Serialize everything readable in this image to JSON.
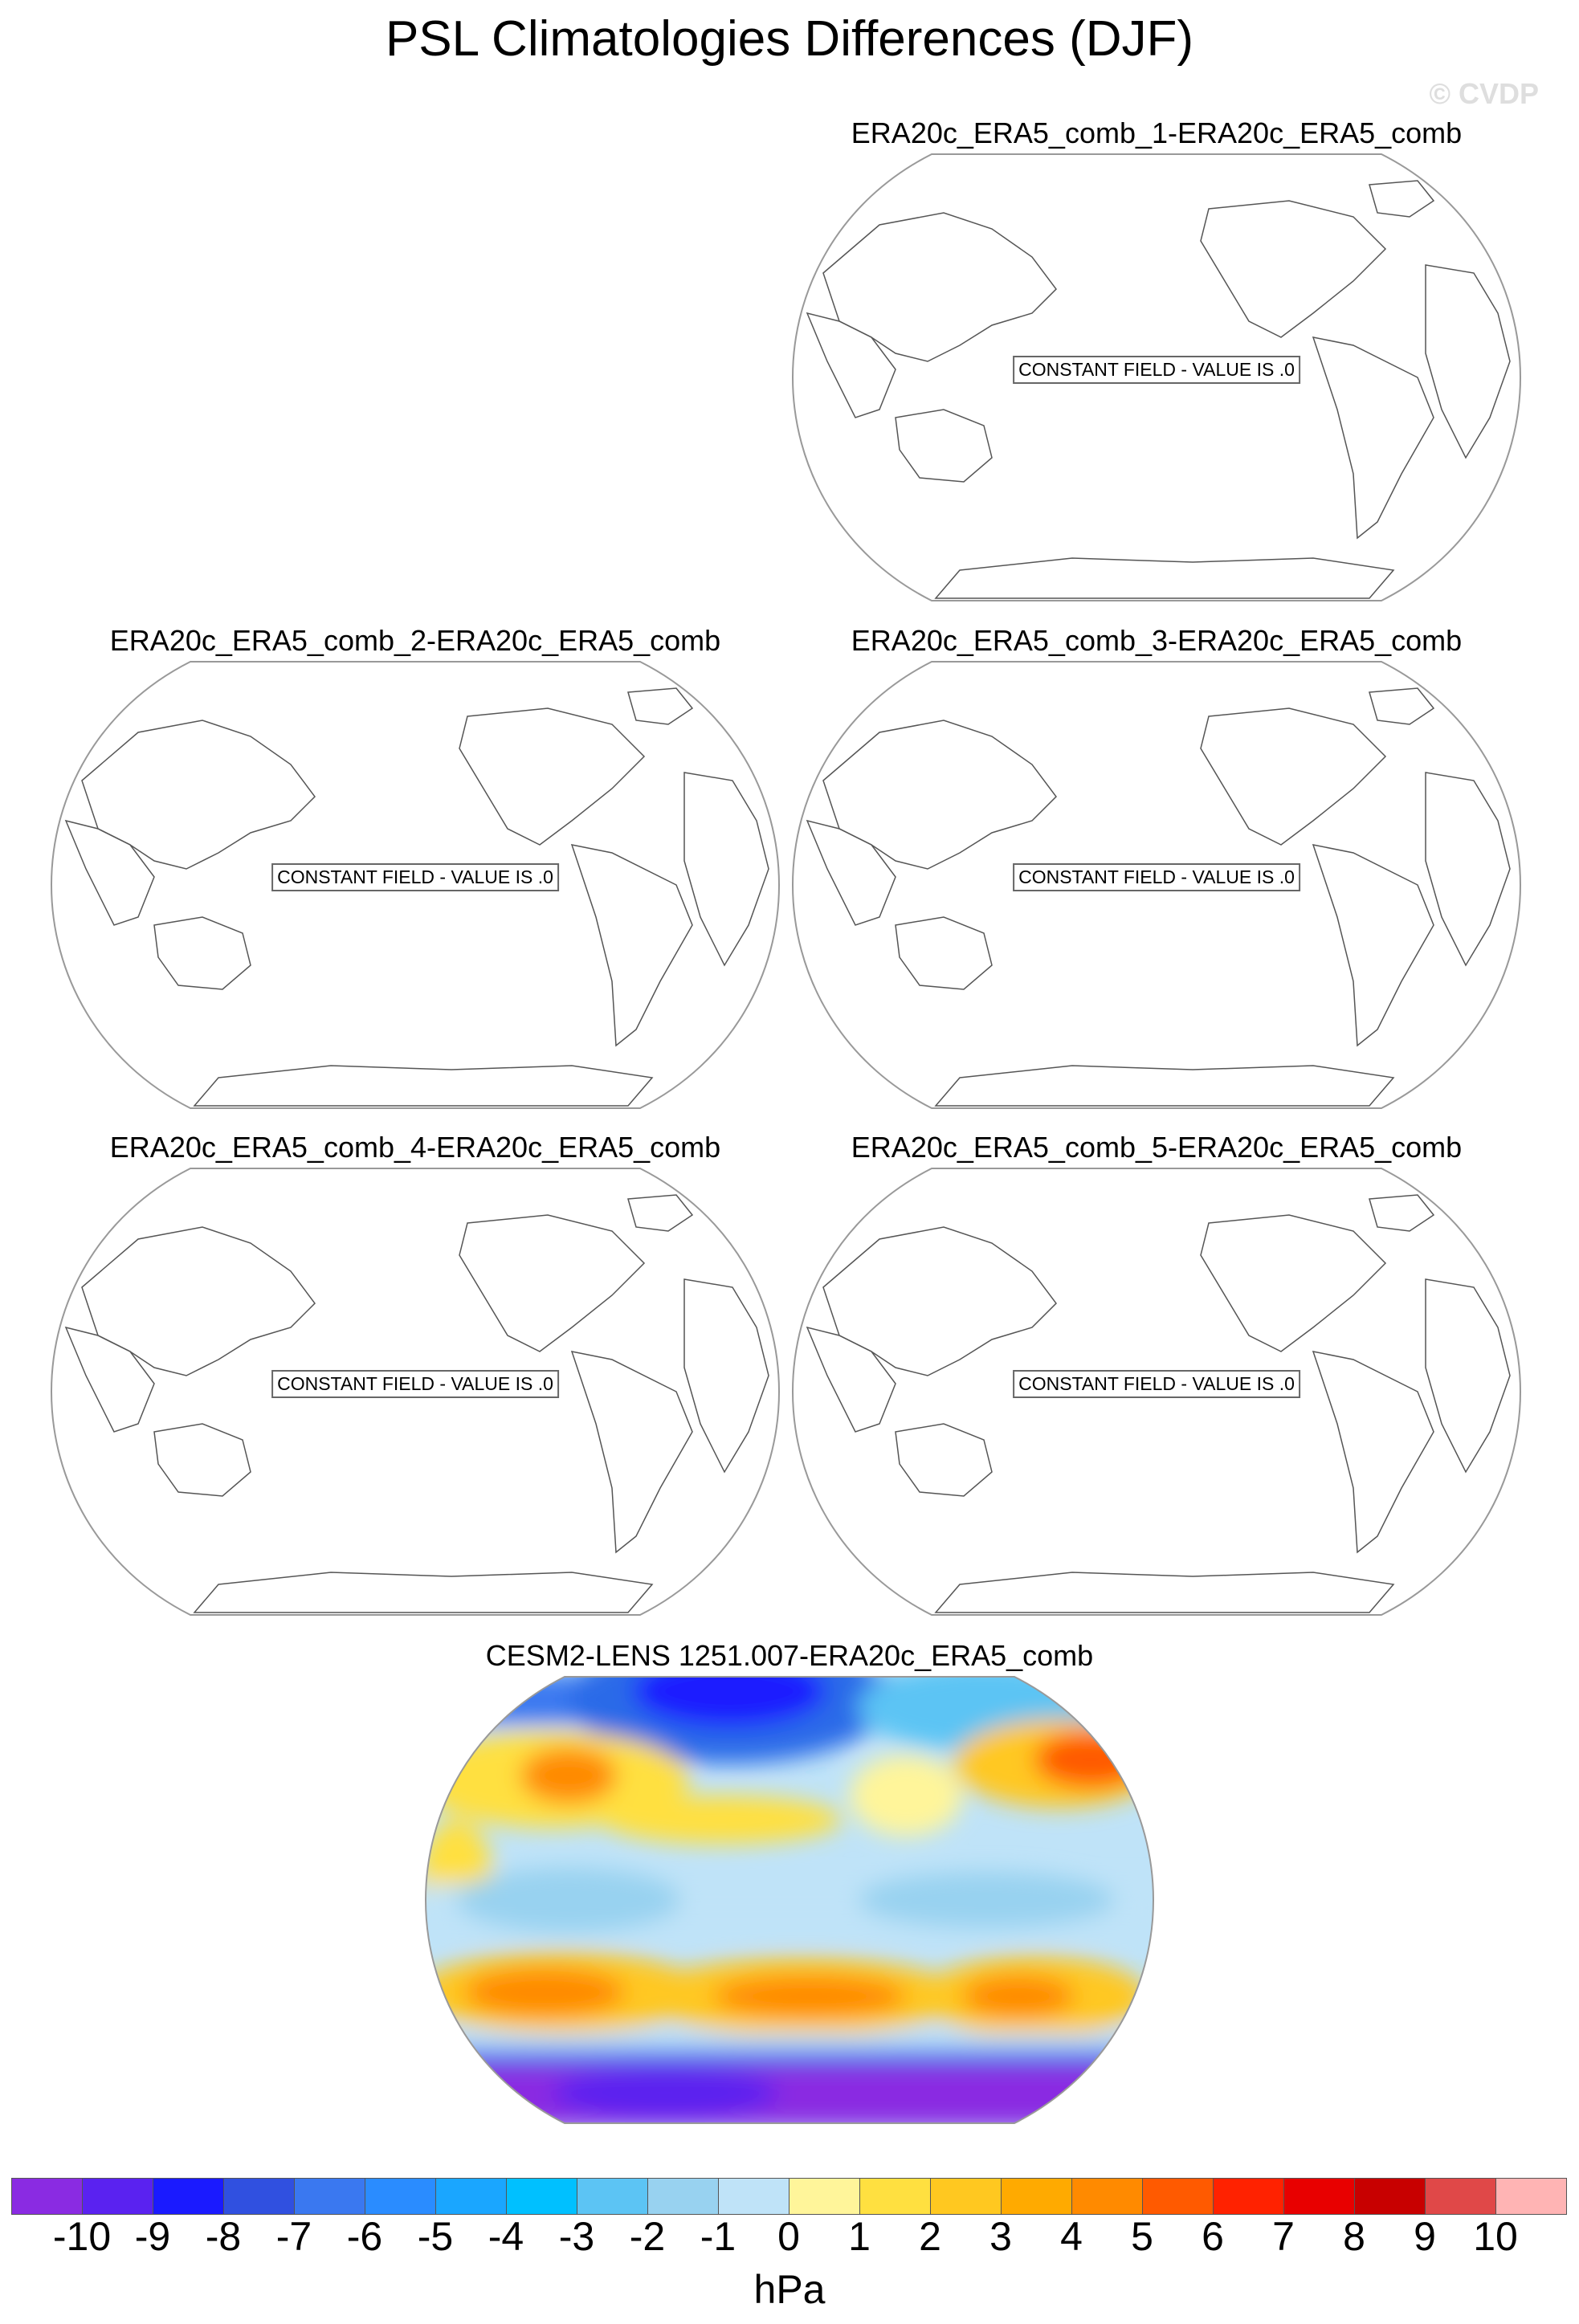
{
  "title": "PSL Climatologies Differences (DJF)",
  "watermark": "© CVDP",
  "panels": [
    {
      "title": "ERA20c_ERA5_comb_1-ERA20c_ERA5_comb",
      "note": "CONSTANT FIELD - VALUE IS .0"
    },
    {
      "title": "ERA20c_ERA5_comb_2-ERA20c_ERA5_comb",
      "note": "CONSTANT FIELD - VALUE IS .0"
    },
    {
      "title": "ERA20c_ERA5_comb_3-ERA20c_ERA5_comb",
      "note": "CONSTANT FIELD - VALUE IS .0"
    },
    {
      "title": "ERA20c_ERA5_comb_4-ERA20c_ERA5_comb",
      "note": "CONSTANT FIELD - VALUE IS .0"
    },
    {
      "title": "ERA20c_ERA5_comb_5-ERA20c_ERA5_comb",
      "note": "CONSTANT FIELD - VALUE IS .0"
    },
    {
      "title": "CESM2-LENS 1251.007-ERA20c_ERA5_comb",
      "note": ""
    }
  ],
  "colorbar": {
    "units": "hPa",
    "labels": [
      "-10",
      "-9",
      "-8",
      "-7",
      "-6",
      "-5",
      "-4",
      "-3",
      "-2",
      "-1",
      "0",
      "1",
      "2",
      "3",
      "4",
      "5",
      "6",
      "7",
      "8",
      "9",
      "10"
    ],
    "colors": [
      "#8a2be2",
      "#5a22f0",
      "#1a1aff",
      "#3050e0",
      "#3a78f0",
      "#2a8cff",
      "#1aa6ff",
      "#00c0ff",
      "#5cc4f4",
      "#98d2f0",
      "#bfe3f8",
      "#fff59a",
      "#ffe040",
      "#ffc820",
      "#ffaa00",
      "#ff8a00",
      "#ff5a00",
      "#ff2200",
      "#e80000",
      "#c80000",
      "#e04848",
      "#ffb4b4"
    ]
  },
  "chart_data": [
    {
      "type": "heatmap",
      "title": "ERA20c_ERA5_comb_1-ERA20c_ERA5_comb",
      "annotation": "CONSTANT FIELD - VALUE IS .0",
      "value": 0
    },
    {
      "type": "heatmap",
      "title": "ERA20c_ERA5_comb_2-ERA20c_ERA5_comb",
      "annotation": "CONSTANT FIELD - VALUE IS .0",
      "value": 0
    },
    {
      "type": "heatmap",
      "title": "ERA20c_ERA5_comb_3-ERA20c_ERA5_comb",
      "annotation": "CONSTANT FIELD - VALUE IS .0",
      "value": 0
    },
    {
      "type": "heatmap",
      "title": "ERA20c_ERA5_comb_4-ERA20c_ERA5_comb",
      "annotation": "CONSTANT FIELD - VALUE IS .0",
      "value": 0
    },
    {
      "type": "heatmap",
      "title": "ERA20c_ERA5_comb_5-ERA20c_ERA5_comb",
      "annotation": "CONSTANT FIELD - VALUE IS .0",
      "value": 0
    },
    {
      "type": "heatmap",
      "title": "CESM2-LENS 1251.007-ERA20c_ERA5_comb",
      "units": "hPa",
      "range": [
        -10,
        10
      ]
    }
  ]
}
